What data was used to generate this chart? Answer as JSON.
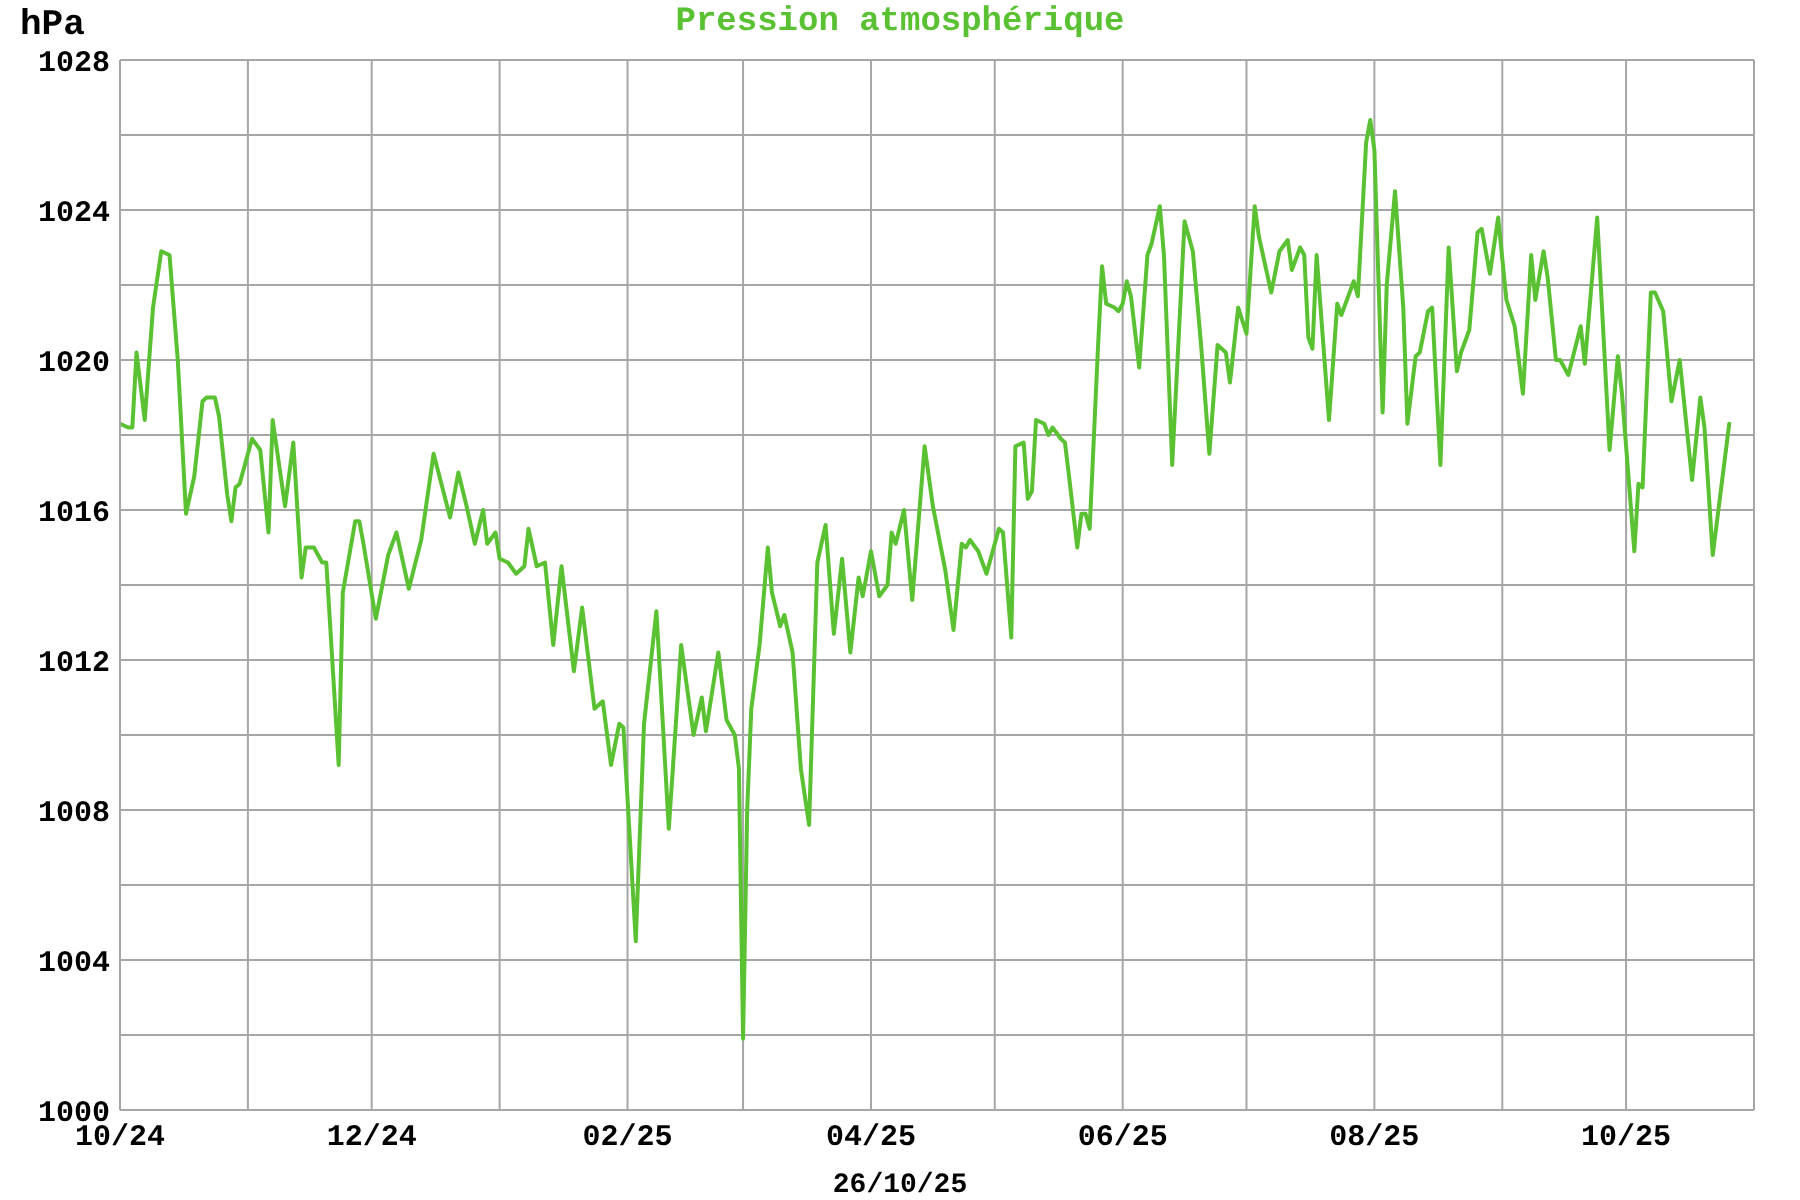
{
  "chart_data": {
    "type": "line",
    "title": "Pression atmosphérique",
    "ylabel": "hPa",
    "xlabel": "26/10/25",
    "x": [
      "2024-10-01",
      "2024-10-03",
      "2024-10-04",
      "2024-10-05",
      "2024-10-07",
      "2024-10-09",
      "2024-10-11",
      "2024-10-13",
      "2024-10-15",
      "2024-10-17",
      "2024-10-19",
      "2024-10-21",
      "2024-10-22",
      "2024-10-24",
      "2024-10-25",
      "2024-10-27",
      "2024-10-28",
      "2024-10-29",
      "2024-10-30",
      "2024-11-01",
      "2024-11-02",
      "2024-11-04",
      "2024-11-06",
      "2024-11-07",
      "2024-11-10",
      "2024-11-12",
      "2024-11-14",
      "2024-11-15",
      "2024-11-17",
      "2024-11-19",
      "2024-11-20",
      "2024-11-23",
      "2024-11-24",
      "2024-11-27",
      "2024-11-28",
      "2024-11-29",
      "2024-12-02",
      "2024-12-05",
      "2024-12-07",
      "2024-12-09",
      "2024-12-10",
      "2024-12-13",
      "2024-12-16",
      "2024-12-20",
      "2024-12-22",
      "2024-12-24",
      "2024-12-26",
      "2024-12-28",
      "2024-12-29",
      "2024-12-31",
      "2025-01-01",
      "2025-01-03",
      "2025-01-05",
      "2025-01-07",
      "2025-01-08",
      "2025-01-10",
      "2025-01-12",
      "2025-01-14",
      "2025-01-16",
      "2025-01-19",
      "2025-01-21",
      "2025-01-24",
      "2025-01-26",
      "2025-01-28",
      "2025-01-30",
      "2025-01-31",
      "2025-02-03",
      "2025-02-05",
      "2025-02-08",
      "2025-02-11",
      "2025-02-14",
      "2025-02-17",
      "2025-02-19",
      "2025-02-20",
      "2025-02-23",
      "2025-02-25",
      "2025-02-27",
      "2025-02-28",
      "2025-03-01",
      "2025-03-02",
      "2025-03-03",
      "2025-03-05",
      "2025-03-07",
      "2025-03-08",
      "2025-03-10",
      "2025-03-11",
      "2025-03-13",
      "2025-03-15",
      "2025-03-17",
      "2025-03-19",
      "2025-03-21",
      "2025-03-23",
      "2025-03-25",
      "2025-03-27",
      "2025-03-29",
      "2025-03-30",
      "2025-04-01",
      "2025-04-03",
      "2025-04-05",
      "2025-04-06",
      "2025-04-07",
      "2025-04-09",
      "2025-04-11",
      "2025-04-14",
      "2025-04-16",
      "2025-04-19",
      "2025-04-21",
      "2025-04-23",
      "2025-04-24",
      "2025-04-25",
      "2025-04-27",
      "2025-04-29",
      "2025-05-02",
      "2025-05-03",
      "2025-05-05",
      "2025-05-06",
      "2025-05-08",
      "2025-05-09",
      "2025-05-10",
      "2025-05-11",
      "2025-05-13",
      "2025-05-14",
      "2025-05-15",
      "2025-05-17",
      "2025-05-18",
      "2025-05-19",
      "2025-05-21",
      "2025-05-22",
      "2025-05-23",
      "2025-05-24",
      "2025-05-26",
      "2025-05-27",
      "2025-05-28",
      "2025-05-30",
      "2025-05-31",
      "2025-06-01",
      "2025-06-02",
      "2025-06-03",
      "2025-06-05",
      "2025-06-07",
      "2025-06-08",
      "2025-06-10",
      "2025-06-11",
      "2025-06-13",
      "2025-06-16",
      "2025-06-18",
      "2025-06-20",
      "2025-06-22",
      "2025-06-24",
      "2025-06-26",
      "2025-06-27",
      "2025-06-29",
      "2025-07-01",
      "2025-07-03",
      "2025-07-04",
      "2025-07-07",
      "2025-07-09",
      "2025-07-11",
      "2025-07-12",
      "2025-07-14",
      "2025-07-15",
      "2025-07-16",
      "2025-07-17",
      "2025-07-18",
      "2025-07-21",
      "2025-07-23",
      "2025-07-24",
      "2025-07-27",
      "2025-07-28",
      "2025-07-30",
      "2025-07-31",
      "2025-08-01",
      "2025-08-03",
      "2025-08-04",
      "2025-08-06",
      "2025-08-08",
      "2025-08-09",
      "2025-08-11",
      "2025-08-12",
      "2025-08-14",
      "2025-08-15",
      "2025-08-17",
      "2025-08-19",
      "2025-08-21",
      "2025-08-22",
      "2025-08-24",
      "2025-08-26",
      "2025-08-27",
      "2025-08-29",
      "2025-08-31",
      "2025-09-02",
      "2025-09-04",
      "2025-09-06",
      "2025-09-08",
      "2025-09-09",
      "2025-09-11",
      "2025-09-12",
      "2025-09-14",
      "2025-09-15",
      "2025-09-17",
      "2025-09-20",
      "2025-09-21",
      "2025-09-24",
      "2025-09-27",
      "2025-09-29",
      "2025-09-30",
      "2025-10-03",
      "2025-10-04",
      "2025-10-05",
      "2025-10-07",
      "2025-10-08",
      "2025-10-10",
      "2025-10-12",
      "2025-10-14",
      "2025-10-17",
      "2025-10-19",
      "2025-10-20",
      "2025-10-22",
      "2025-10-26"
    ],
    "series": [
      {
        "color": "#5ac232",
        "values": [
          1018.3,
          1018.2,
          1018.2,
          1020.2,
          1018.4,
          1021.4,
          1022.9,
          1022.8,
          1020.0,
          1015.9,
          1016.9,
          1018.9,
          1019.0,
          1019.0,
          1018.5,
          1016.4,
          1015.7,
          1016.6,
          1016.7,
          1017.5,
          1017.9,
          1017.6,
          1015.4,
          1018.4,
          1016.1,
          1017.8,
          1014.2,
          1015.0,
          1015.0,
          1014.6,
          1014.6,
          1009.2,
          1013.8,
          1015.7,
          1015.7,
          1015.1,
          1013.1,
          1014.8,
          1015.4,
          1014.4,
          1013.9,
          1015.2,
          1017.5,
          1015.8,
          1017.0,
          1016.1,
          1015.1,
          1016.0,
          1015.1,
          1015.4,
          1014.7,
          1014.6,
          1014.3,
          1014.5,
          1015.5,
          1014.5,
          1014.6,
          1012.4,
          1014.5,
          1011.7,
          1013.4,
          1010.7,
          1010.9,
          1009.2,
          1010.3,
          1010.2,
          1004.5,
          1010.3,
          1013.3,
          1007.5,
          1012.4,
          1010.0,
          1011.0,
          1010.1,
          1012.2,
          1010.4,
          1010.0,
          1009.1,
          1001.9,
          1008.0,
          1010.7,
          1012.4,
          1015.0,
          1013.8,
          1012.9,
          1013.2,
          1012.2,
          1009.1,
          1007.6,
          1014.6,
          1015.6,
          1012.7,
          1014.7,
          1012.2,
          1014.2,
          1013.7,
          1014.9,
          1013.7,
          1014.0,
          1015.4,
          1015.1,
          1016.0,
          1013.6,
          1017.7,
          1016.1,
          1014.4,
          1012.8,
          1015.1,
          1015.0,
          1015.2,
          1014.9,
          1014.3,
          1015.5,
          1015.4,
          1012.6,
          1017.7,
          1017.8,
          1016.3,
          1016.5,
          1018.4,
          1018.3,
          1018.0,
          1018.2,
          1017.9,
          1017.8,
          1016.9,
          1015.0,
          1015.9,
          1015.9,
          1015.5,
          1020.3,
          1022.5,
          1021.5,
          1021.4,
          1021.3,
          1021.5,
          1022.1,
          1021.7,
          1019.8,
          1022.8,
          1023.1,
          1024.1,
          1022.8,
          1017.2,
          1023.7,
          1022.9,
          1020.4,
          1017.5,
          1020.4,
          1020.2,
          1019.4,
          1021.4,
          1020.7,
          1024.1,
          1023.3,
          1021.8,
          1022.9,
          1023.2,
          1022.4,
          1023.0,
          1022.8,
          1020.6,
          1020.3,
          1022.8,
          1018.4,
          1021.5,
          1021.2,
          1022.1,
          1021.7,
          1025.8,
          1026.4,
          1025.6,
          1018.6,
          1022.0,
          1024.5,
          1021.4,
          1018.3,
          1020.1,
          1020.2,
          1021.3,
          1021.4,
          1017.2,
          1023.0,
          1019.7,
          1020.2,
          1020.8,
          1023.4,
          1023.5,
          1022.3,
          1023.8,
          1021.6,
          1020.9,
          1019.1,
          1022.8,
          1021.6,
          1022.9,
          1022.2,
          1020.0,
          1020.0,
          1019.6,
          1020.9,
          1019.9,
          1023.8,
          1017.6,
          1020.1,
          1019.1,
          1014.9,
          1016.7,
          1016.6,
          1021.8,
          1021.8,
          1021.3,
          1018.9,
          1020.0,
          1016.8,
          1019.0,
          1018.2,
          1014.8,
          1018.3
        ]
      }
    ],
    "xlim": [
      "2024-10-01",
      "2025-11-01"
    ],
    "xticks": [
      {
        "value": "2024-10-01",
        "label": "10/24"
      },
      {
        "value": "2024-11-01",
        "label": null
      },
      {
        "value": "2024-12-01",
        "label": "12/24"
      },
      {
        "value": "2025-01-01",
        "label": null
      },
      {
        "value": "2025-02-01",
        "label": "02/25"
      },
      {
        "value": "2025-03-01",
        "label": null
      },
      {
        "value": "2025-04-01",
        "label": "04/25"
      },
      {
        "value": "2025-05-01",
        "label": null
      },
      {
        "value": "2025-06-01",
        "label": "06/25"
      },
      {
        "value": "2025-07-01",
        "label": null
      },
      {
        "value": "2025-08-01",
        "label": "08/25"
      },
      {
        "value": "2025-09-01",
        "label": null
      },
      {
        "value": "2025-10-01",
        "label": "10/25"
      },
      {
        "value": "2025-11-01",
        "label": null
      }
    ],
    "ylim": [
      1000,
      1028
    ],
    "yticks": [
      1000,
      {
        "value": 1002,
        "label": null
      },
      1004,
      {
        "value": 1006,
        "label": null
      },
      1008,
      {
        "value": 1010,
        "label": null
      },
      1012,
      {
        "value": 1014,
        "label": null
      },
      1016,
      {
        "value": 1018,
        "label": null
      },
      1020,
      {
        "value": 1022,
        "label": null
      },
      1024,
      {
        "value": 1026,
        "label": null
      },
      1028
    ],
    "grid": true,
    "line_style": "solid"
  }
}
